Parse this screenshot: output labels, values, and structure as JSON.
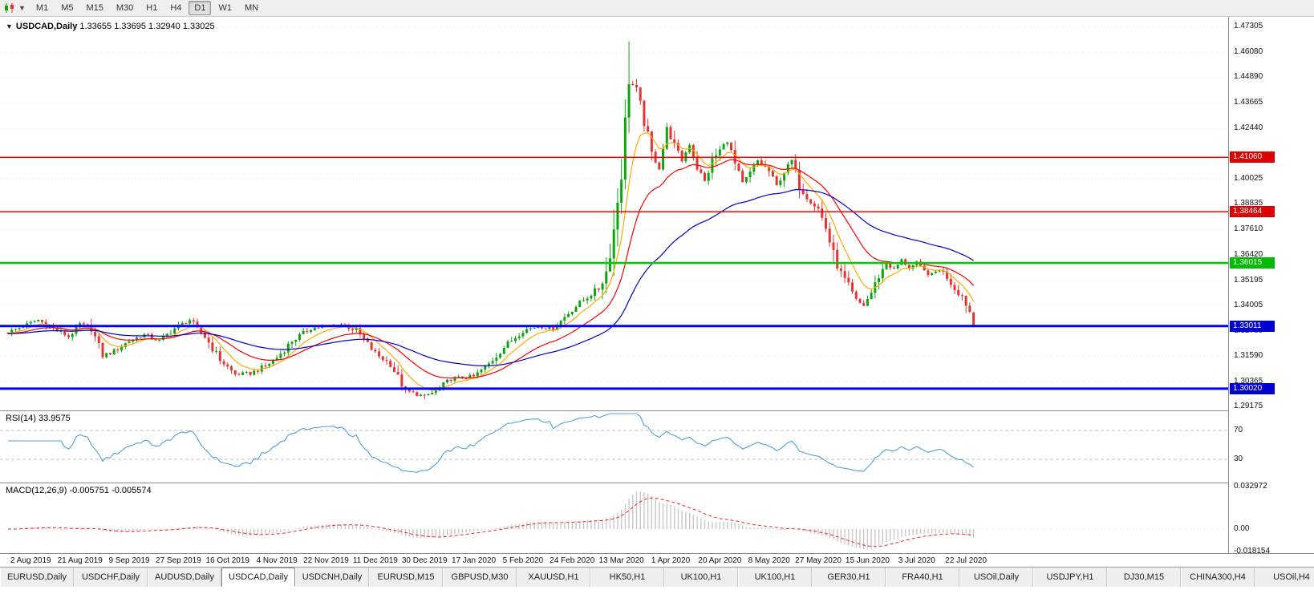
{
  "icons": {
    "caret": "▼"
  },
  "colors": {
    "up": "#0fa211",
    "down": "#e43434",
    "ma_fast": "#ffaa00",
    "ma_mid": "#ff0000",
    "ma_slow": "#0000c8",
    "rsi": "#4fa0d8",
    "rsi_level": "#bdbdbd",
    "macd_hist": "#c8c8c8",
    "macd_signal": "#ff2020",
    "grid": "#e4e4e4"
  },
  "toolbar": {
    "timeframes": [
      {
        "label": "M1",
        "active": false
      },
      {
        "label": "M5",
        "active": false
      },
      {
        "label": "M15",
        "active": false
      },
      {
        "label": "M30",
        "active": false
      },
      {
        "label": "H1",
        "active": false
      },
      {
        "label": "H4",
        "active": false
      },
      {
        "label": "D1",
        "active": true
      },
      {
        "label": "W1",
        "active": false
      },
      {
        "label": "MN",
        "active": false
      }
    ]
  },
  "chart": {
    "title_symbol": "USDCAD,Daily",
    "title_ohlc": "1.33655 1.33695 1.32940 1.33025"
  },
  "price_axis": {
    "ticks": [
      "1.47305",
      "1.46080",
      "1.44890",
      "1.43665",
      "1.42440",
      "1.40025",
      "1.38835",
      "1.37610",
      "1.36420",
      "1.35195",
      "1.34005",
      "1.32780",
      "1.31590",
      "1.30365",
      "1.29175"
    ]
  },
  "indicators": {
    "rsi": {
      "label": "RSI(14) 33.9575",
      "axis_labels": [
        "70",
        "30"
      ]
    },
    "macd": {
      "label": "MACD(12,26,9) -0.005751 -0.005574",
      "axis_labels": [
        "0.032972",
        "0.00",
        "-0.018154"
      ]
    }
  },
  "date_axis": {
    "first_candle_index": 6,
    "step": 13,
    "labels": [
      "2 Aug 2019",
      "21 Aug 2019",
      "9 Sep 2019",
      "27 Sep 2019",
      "16 Oct 2019",
      "4 Nov 2019",
      "22 Nov 2019",
      "11 Dec 2019",
      "30 Dec 2019",
      "17 Jan 2020",
      "5 Feb 2020",
      "24 Feb 2020",
      "13 Mar 2020",
      "1 Apr 2020",
      "20 Apr 2020",
      "8 May 2020",
      "27 May 2020",
      "15 Jun 2020",
      "3 Jul 2020",
      "22 Jul 2020"
    ]
  },
  "tabs": {
    "active_index": 3,
    "items": [
      "EURUSD,Daily",
      "USDCHF,Daily",
      "AUDUSD,Daily",
      "USDCAD,Daily",
      "USDCNH,Daily",
      "EURUSD,M15",
      "GBPUSD,M30",
      "XAUUSD,H1",
      "HK50,H1",
      "UK100,H1",
      "UK100,H1",
      "GER30,H1",
      "FRA40,H1",
      "USOil,Daily",
      "USDJPY,H1",
      "DJ30,M15",
      "CHINA300,H4",
      "USOil,H4"
    ]
  },
  "chart_data": {
    "type": "candlestick",
    "symbol": "USDCAD",
    "timeframe": "Daily",
    "title": "USDCAD,Daily",
    "candle_count": 256,
    "y_range": [
      1.29175,
      1.47305
    ],
    "x_range_dates": [
      "2 Aug 2019",
      "22 Jul 2020"
    ],
    "last_ohlc": {
      "open": 1.33655,
      "high": 1.33695,
      "low": 1.3294,
      "close": 1.33025
    },
    "extremes": {
      "high": [
        164,
        1.466
      ],
      "low": [
        110,
        1.2951
      ]
    },
    "close_waypoints": [
      [
        0,
        1.327
      ],
      [
        4,
        1.33
      ],
      [
        8,
        1.333
      ],
      [
        12,
        1.329
      ],
      [
        16,
        1.325
      ],
      [
        19,
        1.331
      ],
      [
        22,
        1.329
      ],
      [
        25,
        1.316
      ],
      [
        28,
        1.318
      ],
      [
        32,
        1.323
      ],
      [
        36,
        1.326
      ],
      [
        40,
        1.323
      ],
      [
        44,
        1.329
      ],
      [
        48,
        1.333
      ],
      [
        52,
        1.325
      ],
      [
        56,
        1.314
      ],
      [
        60,
        1.307
      ],
      [
        64,
        1.3075
      ],
      [
        68,
        1.311
      ],
      [
        71,
        1.315
      ],
      [
        75,
        1.323
      ],
      [
        80,
        1.329
      ],
      [
        84,
        1.33
      ],
      [
        88,
        1.331
      ],
      [
        92,
        1.328
      ],
      [
        97,
        1.317
      ],
      [
        101,
        1.312
      ],
      [
        105,
        1.299
      ],
      [
        110,
        1.2965
      ],
      [
        113,
        1.299
      ],
      [
        117,
        1.305
      ],
      [
        123,
        1.306
      ],
      [
        127,
        1.312
      ],
      [
        131,
        1.32
      ],
      [
        136,
        1.328
      ],
      [
        140,
        1.33
      ],
      [
        144,
        1.329
      ],
      [
        149,
        1.338
      ],
      [
        153,
        1.344
      ],
      [
        156,
        1.348
      ],
      [
        158,
        1.356
      ],
      [
        160,
        1.376
      ],
      [
        162,
        1.405
      ],
      [
        164,
        1.448
      ],
      [
        166,
        1.442
      ],
      [
        168,
        1.428
      ],
      [
        170,
        1.412
      ],
      [
        172,
        1.406
      ],
      [
        174,
        1.424
      ],
      [
        176,
        1.416
      ],
      [
        178,
        1.409
      ],
      [
        180,
        1.417
      ],
      [
        182,
        1.406
      ],
      [
        184,
        1.399
      ],
      [
        186,
        1.409
      ],
      [
        188,
        1.414
      ],
      [
        190,
        1.419
      ],
      [
        192,
        1.407
      ],
      [
        194,
        1.398
      ],
      [
        196,
        1.403
      ],
      [
        198,
        1.409
      ],
      [
        201,
        1.404
      ],
      [
        203,
        1.397
      ],
      [
        205,
        1.404
      ],
      [
        207,
        1.409
      ],
      [
        209,
        1.397
      ],
      [
        211,
        1.392
      ],
      [
        214,
        1.386
      ],
      [
        216,
        1.377
      ],
      [
        218,
        1.364
      ],
      [
        220,
        1.355
      ],
      [
        222,
        1.349
      ],
      [
        224,
        1.342
      ],
      [
        226,
        1.34
      ],
      [
        228,
        1.346
      ],
      [
        230,
        1.354
      ],
      [
        232,
        1.36
      ],
      [
        234,
        1.357
      ],
      [
        236,
        1.3615
      ],
      [
        238,
        1.358
      ],
      [
        240,
        1.36
      ],
      [
        242,
        1.356
      ],
      [
        244,
        1.3545
      ],
      [
        246,
        1.3575
      ],
      [
        248,
        1.3535
      ],
      [
        250,
        1.348
      ],
      [
        252,
        1.3445
      ],
      [
        253,
        1.341
      ],
      [
        254,
        1.337
      ],
      [
        255,
        1.3303
      ]
    ],
    "levels": [
      {
        "price": "1.41060",
        "role": "resistance",
        "line_color": "#ff0000",
        "line_width": 1.5,
        "badge_color": "#dd0000"
      },
      {
        "price": "1.38464",
        "role": "resistance",
        "line_color": "#ff0000",
        "line_width": 1.5,
        "badge_color": "#dd0000"
      },
      {
        "price": "1.36015",
        "role": "pivot",
        "line_color": "#00cc00",
        "line_width": 2.5,
        "badge_color": "#00bb00"
      },
      {
        "price": "1.33011",
        "role": "support",
        "line_color": "#0000ff",
        "line_width": 3,
        "badge_color": "#0000cc"
      },
      {
        "price": "1.30020",
        "role": "support",
        "line_color": "#0000ff",
        "line_width": 3,
        "badge_color": "#0000cc"
      }
    ],
    "moving_averages": [
      {
        "period": 8,
        "color": "#ffaa00"
      },
      {
        "period": 21,
        "color": "#ff0000"
      },
      {
        "period": 55,
        "color": "#0000c8"
      }
    ],
    "rsi": {
      "period": 14,
      "current": 33.9575,
      "levels": [
        70,
        30
      ]
    },
    "macd": {
      "fast": 12,
      "slow": 26,
      "signal": 9,
      "current_main": -0.005751,
      "current_signal": -0.005574
    }
  }
}
